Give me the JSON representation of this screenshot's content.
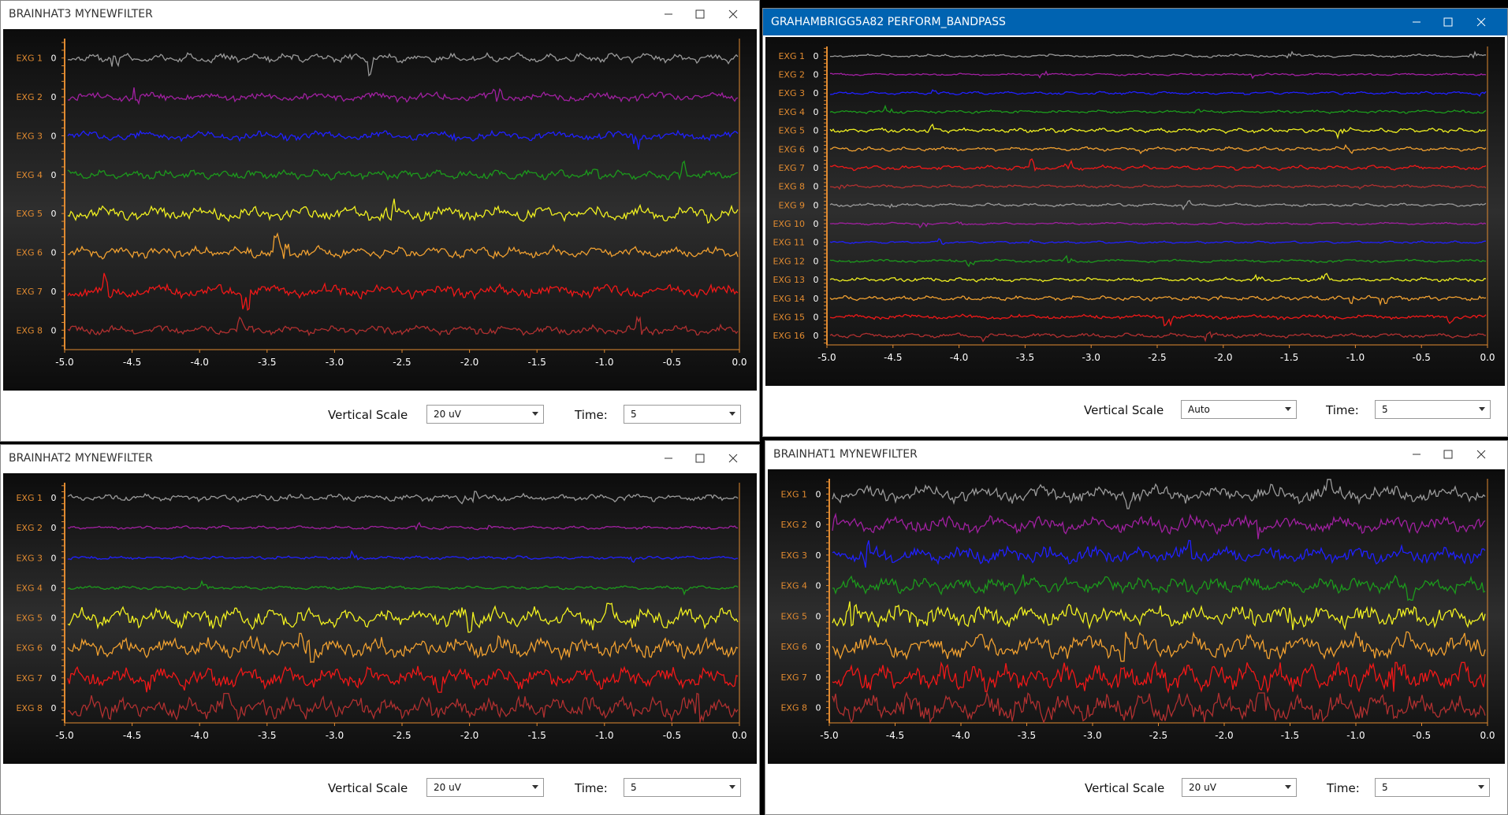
{
  "windows": [
    {
      "title": "BRAINHAT3 MYNEWFILTER",
      "channels": [
        {
          "label": "EXG 1",
          "value": 0,
          "color": "#9a9a9a"
        },
        {
          "label": "EXG 2",
          "value": 0,
          "color": "#a020a0"
        },
        {
          "label": "EXG 3",
          "value": 0,
          "color": "#2020ff"
        },
        {
          "label": "EXG 4",
          "value": 0,
          "color": "#1c9a1c"
        },
        {
          "label": "EXG 5",
          "value": 0,
          "color": "#f0f020"
        },
        {
          "label": "EXG 6",
          "value": 0,
          "color": "#f0a030"
        },
        {
          "label": "EXG 7",
          "value": 0,
          "color": "#f01818"
        },
        {
          "label": "EXG 8",
          "value": 0,
          "color": "#b03030"
        }
      ],
      "x_ticks": [
        "-5.0",
        "-4.5",
        "-4.0",
        "-3.5",
        "-3.0",
        "-2.5",
        "-2.0",
        "-1.5",
        "-1.0",
        "-0.5",
        "0.0"
      ],
      "controls": {
        "vertical_scale_label": "Vertical Scale",
        "vertical_scale": "20 uV",
        "time_label": "Time:",
        "time": "5"
      }
    },
    {
      "title": "GRAHAMBRIGG5A82 PERFORM_BANDPASS",
      "channels": [
        {
          "label": "EXG 1",
          "value": 0,
          "color": "#9a9a9a"
        },
        {
          "label": "EXG 2",
          "value": 0,
          "color": "#a020a0"
        },
        {
          "label": "EXG 3",
          "value": 0,
          "color": "#2020ff"
        },
        {
          "label": "EXG 4",
          "value": 0,
          "color": "#1c9a1c"
        },
        {
          "label": "EXG 5",
          "value": 0,
          "color": "#f0f020"
        },
        {
          "label": "EXG 6",
          "value": 0,
          "color": "#f0a030"
        },
        {
          "label": "EXG 7",
          "value": 0,
          "color": "#f01818"
        },
        {
          "label": "EXG 8",
          "value": 0,
          "color": "#b03030"
        },
        {
          "label": "EXG 9",
          "value": 0,
          "color": "#9a9a9a"
        },
        {
          "label": "EXG 10",
          "value": 0,
          "color": "#a020a0"
        },
        {
          "label": "EXG 11",
          "value": 0,
          "color": "#2020ff"
        },
        {
          "label": "EXG 12",
          "value": 0,
          "color": "#1c9a1c"
        },
        {
          "label": "EXG 13",
          "value": 0,
          "color": "#f0f020"
        },
        {
          "label": "EXG 14",
          "value": 0,
          "color": "#f0a030"
        },
        {
          "label": "EXG 15",
          "value": 0,
          "color": "#f01818"
        },
        {
          "label": "EXG 16",
          "value": 0,
          "color": "#b03030"
        }
      ],
      "x_ticks": [
        "-5.0",
        "-4.5",
        "-4.0",
        "-3.5",
        "-3.0",
        "-2.5",
        "-2.0",
        "-1.5",
        "-1.0",
        "-0.5",
        "0.0"
      ],
      "controls": {
        "vertical_scale_label": "Vertical Scale",
        "vertical_scale": "Auto",
        "time_label": "Time:",
        "time": "5"
      }
    },
    {
      "title": "BRAINHAT2 MYNEWFILTER",
      "channels": [
        {
          "label": "EXG 1",
          "value": 0,
          "color": "#9a9a9a"
        },
        {
          "label": "EXG 2",
          "value": 0,
          "color": "#a020a0"
        },
        {
          "label": "EXG 3",
          "value": 0,
          "color": "#2020ff"
        },
        {
          "label": "EXG 4",
          "value": 0,
          "color": "#1c9a1c"
        },
        {
          "label": "EXG 5",
          "value": 0,
          "color": "#f0f020"
        },
        {
          "label": "EXG 6",
          "value": 0,
          "color": "#f0a030"
        },
        {
          "label": "EXG 7",
          "value": 0,
          "color": "#f01818"
        },
        {
          "label": "EXG 8",
          "value": 0,
          "color": "#b03030"
        }
      ],
      "x_ticks": [
        "-5.0",
        "-4.5",
        "-4.0",
        "-3.5",
        "-3.0",
        "-2.5",
        "-2.0",
        "-1.5",
        "-1.0",
        "-0.5",
        "0.0"
      ],
      "controls": {
        "vertical_scale_label": "Vertical Scale",
        "vertical_scale": "20 uV",
        "time_label": "Time:",
        "time": "5"
      }
    },
    {
      "title": "BRAINHAT1 MYNEWFILTER",
      "channels": [
        {
          "label": "EXG 1",
          "value": 0,
          "color": "#9a9a9a"
        },
        {
          "label": "EXG 2",
          "value": 0,
          "color": "#a020a0"
        },
        {
          "label": "EXG 3",
          "value": 0,
          "color": "#2020ff"
        },
        {
          "label": "EXG 4",
          "value": 0,
          "color": "#1c9a1c"
        },
        {
          "label": "EXG 5",
          "value": 0,
          "color": "#f0f020"
        },
        {
          "label": "EXG 6",
          "value": 0,
          "color": "#f0a030"
        },
        {
          "label": "EXG 7",
          "value": 0,
          "color": "#f01818"
        },
        {
          "label": "EXG 8",
          "value": 0,
          "color": "#b03030"
        }
      ],
      "x_ticks": [
        "-5.0",
        "-4.5",
        "-4.0",
        "-3.5",
        "-3.0",
        "-2.5",
        "-2.0",
        "-1.5",
        "-1.0",
        "-0.5",
        "0.0"
      ],
      "controls": {
        "vertical_scale_label": "Vertical Scale",
        "vertical_scale": "20 uV",
        "time_label": "Time:",
        "time": "5"
      }
    }
  ]
}
